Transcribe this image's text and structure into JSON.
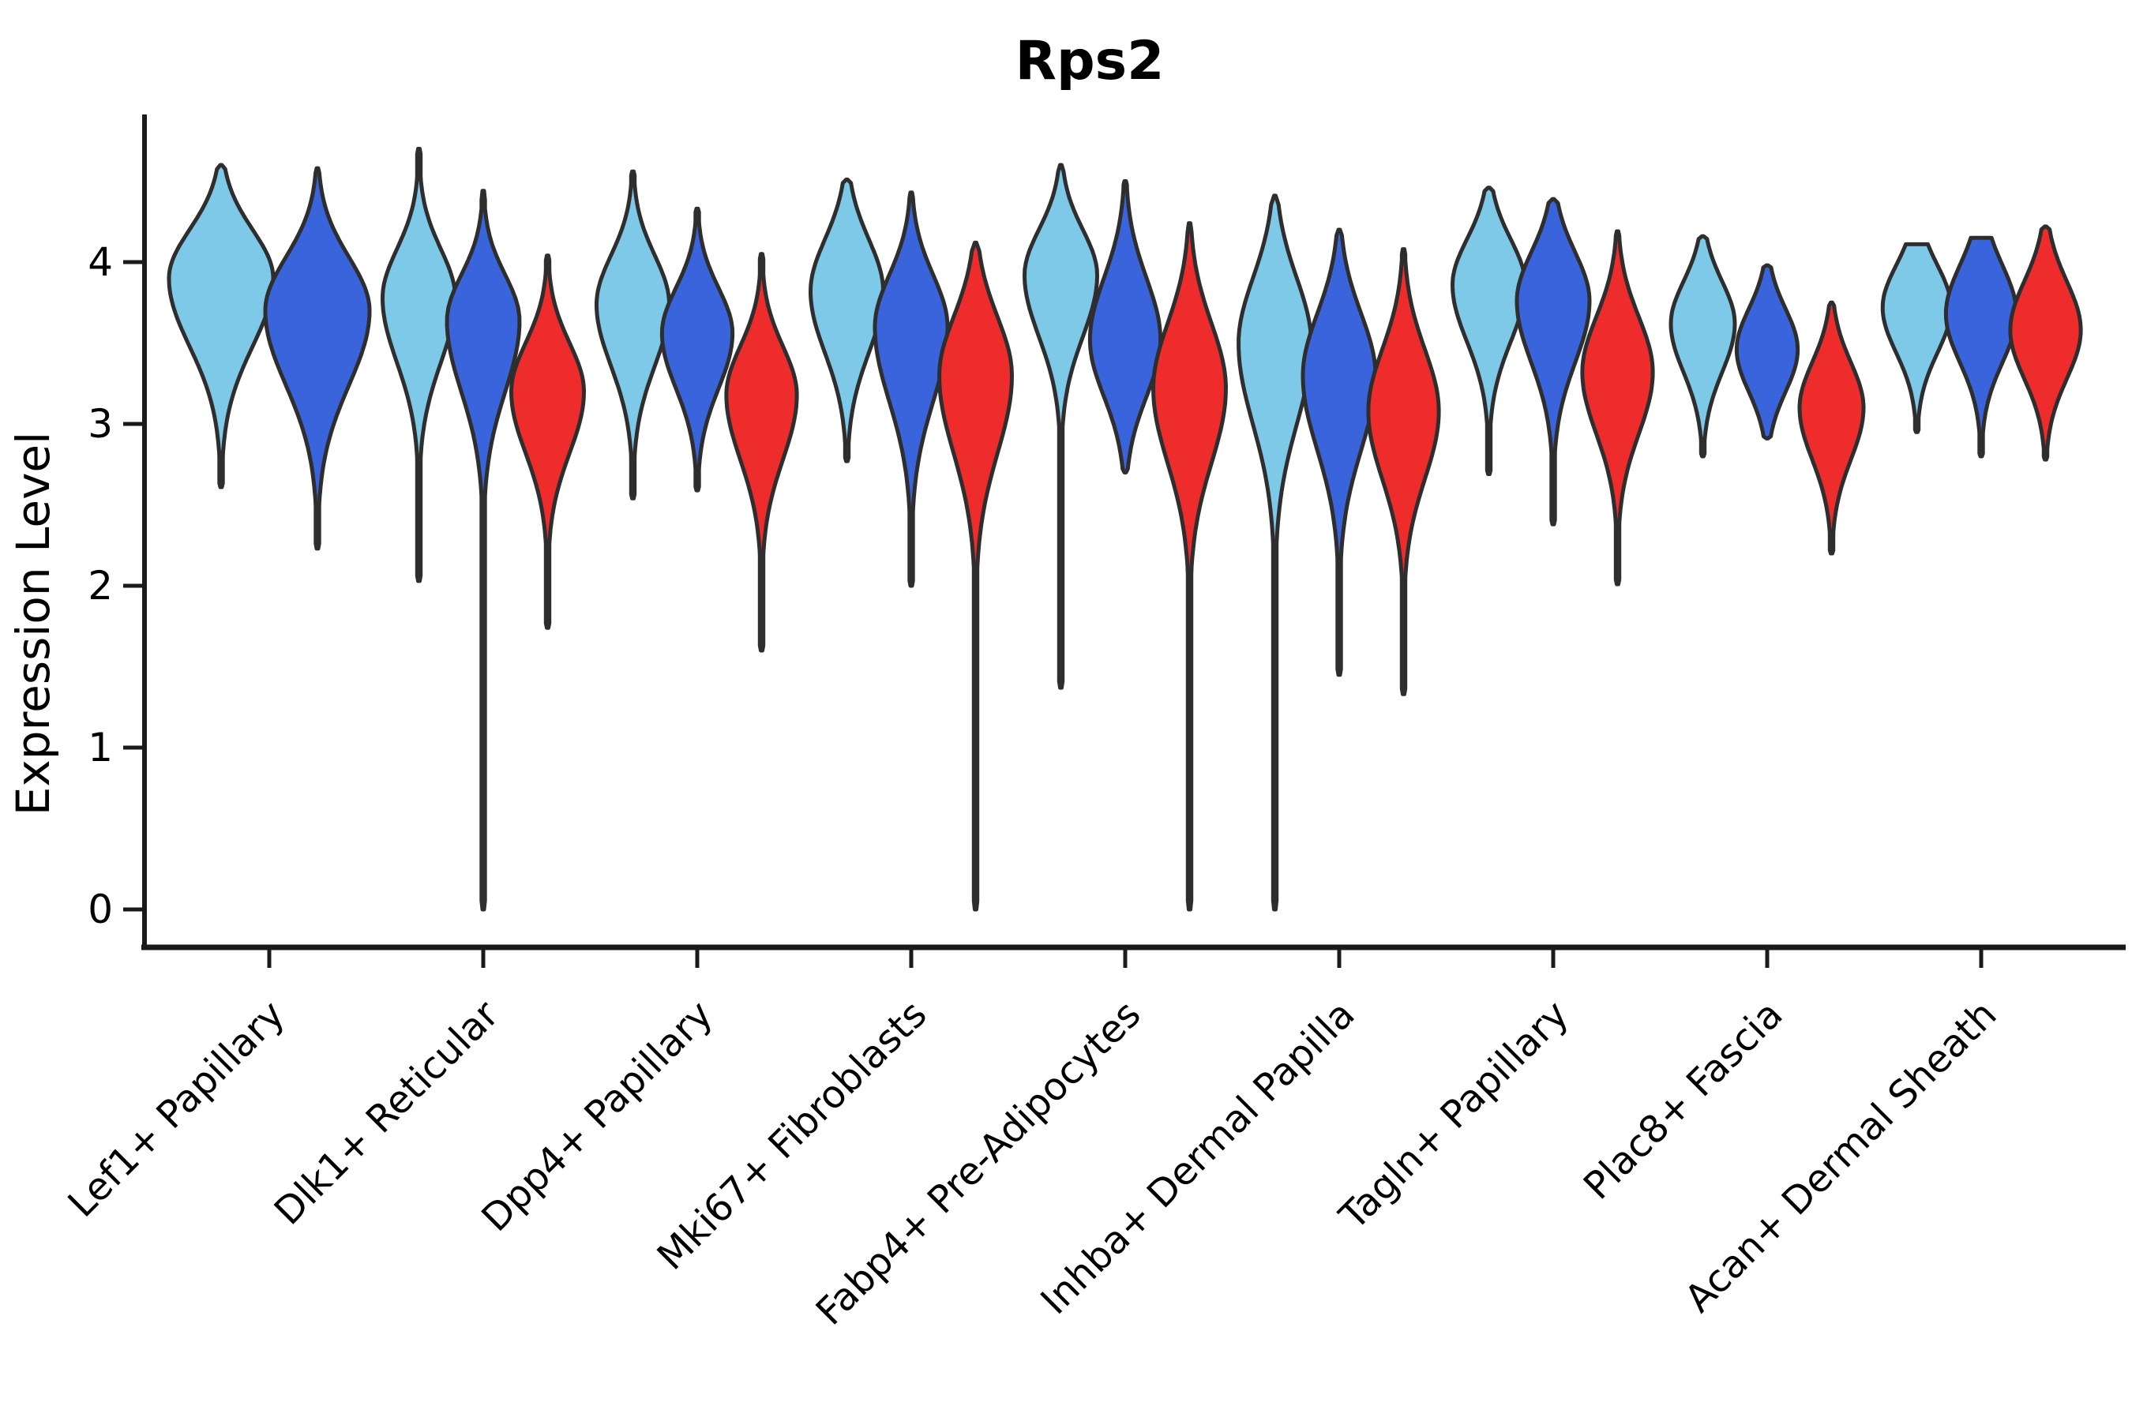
{
  "title": "Rps2",
  "y_axis": {
    "label": "Expression Level",
    "tick_labels": [
      "0",
      "1",
      "2",
      "3",
      "4"
    ]
  },
  "colors": {
    "light_blue": "#7EC8E8",
    "dark_blue": "#3A64DC",
    "red": "#EE2C2C",
    "outline": "#2E2E2E",
    "axis": "#1A1A1A"
  },
  "chart_data": {
    "type": "violin",
    "title": "Rps2",
    "xlabel": "",
    "ylabel": "Expression Level",
    "ylim": [
      0,
      4.9
    ],
    "yticks": [
      0,
      1,
      2,
      3,
      4
    ],
    "grid": false,
    "legend_position": "none",
    "splits": [
      "light_blue",
      "dark_blue",
      "red"
    ],
    "categories": [
      "Lef1+ Papillary",
      "Dlk1+ Reticular",
      "Dpp4+ Papillary",
      "Mki67+ Fibroblasts",
      "Fabp4+ Pre-Adipocytes",
      "Inhba+ Dermal Papilla",
      "Tagln+ Papillary",
      "Plac8+ Fascia",
      "Acan+ Dermal Sheath"
    ],
    "violins": [
      {
        "category": "Lef1+ Papillary",
        "split": "light_blue",
        "min": 2.61,
        "peak": 3.9,
        "max": 4.6,
        "spread_up": 0.3,
        "spread_down": 0.42,
        "rel_width": 1.0,
        "flat_top": false
      },
      {
        "category": "Lef1+ Papillary",
        "split": "dark_blue",
        "min": 2.23,
        "peak": 3.7,
        "max": 4.58,
        "spread_up": 0.33,
        "spread_down": 0.46,
        "rel_width": 1.0,
        "flat_top": false
      },
      {
        "category": "Dlk1+ Reticular",
        "split": "light_blue",
        "min": 2.03,
        "peak": 3.78,
        "max": 4.7,
        "spread_up": 0.3,
        "spread_down": 0.4,
        "rel_width": 1.0,
        "flat_top": false
      },
      {
        "category": "Dlk1+ Reticular",
        "split": "dark_blue",
        "min": 0.0,
        "peak": 3.64,
        "max": 4.44,
        "spread_up": 0.28,
        "spread_down": 0.44,
        "rel_width": 1.0,
        "flat_top": false
      },
      {
        "category": "Dlk1+ Reticular",
        "split": "red",
        "min": 1.74,
        "peak": 3.2,
        "max": 4.04,
        "spread_up": 0.3,
        "spread_down": 0.38,
        "rel_width": 1.0,
        "flat_top": false
      },
      {
        "category": "Dpp4+ Papillary",
        "split": "light_blue",
        "min": 2.54,
        "peak": 3.74,
        "max": 4.56,
        "spread_up": 0.3,
        "spread_down": 0.38,
        "rel_width": 1.0,
        "flat_top": false
      },
      {
        "category": "Dpp4+ Papillary",
        "split": "dark_blue",
        "min": 2.59,
        "peak": 3.56,
        "max": 4.33,
        "spread_up": 0.28,
        "spread_down": 0.34,
        "rel_width": 0.97,
        "flat_top": false
      },
      {
        "category": "Dpp4+ Papillary",
        "split": "red",
        "min": 1.6,
        "peak": 3.18,
        "max": 4.05,
        "spread_up": 0.3,
        "spread_down": 0.4,
        "rel_width": 0.97,
        "flat_top": false
      },
      {
        "category": "Mki67+ Fibroblasts",
        "split": "light_blue",
        "min": 2.77,
        "peak": 3.82,
        "max": 4.51,
        "spread_up": 0.32,
        "spread_down": 0.38,
        "rel_width": 1.0,
        "flat_top": false
      },
      {
        "category": "Mki67+ Fibroblasts",
        "split": "dark_blue",
        "min": 2.0,
        "peak": 3.6,
        "max": 4.43,
        "spread_up": 0.32,
        "spread_down": 0.46,
        "rel_width": 1.0,
        "flat_top": false
      },
      {
        "category": "Mki67+ Fibroblasts",
        "split": "red",
        "min": 0.0,
        "peak": 3.3,
        "max": 4.12,
        "spread_up": 0.36,
        "spread_down": 0.48,
        "rel_width": 1.0,
        "flat_top": false
      },
      {
        "category": "Fabp4+ Pre-Adipocytes",
        "split": "light_blue",
        "min": 1.37,
        "peak": 3.92,
        "max": 4.6,
        "spread_up": 0.28,
        "spread_down": 0.38,
        "rel_width": 1.0,
        "flat_top": false
      },
      {
        "category": "Fabp4+ Pre-Adipocytes",
        "split": "dark_blue",
        "min": 2.7,
        "peak": 3.52,
        "max": 4.5,
        "spread_up": 0.38,
        "spread_down": 0.35,
        "rel_width": 0.97,
        "flat_top": false
      },
      {
        "category": "Fabp4+ Pre-Adipocytes",
        "split": "red",
        "min": 0.0,
        "peak": 3.22,
        "max": 4.24,
        "spread_up": 0.4,
        "spread_down": 0.46,
        "rel_width": 1.0,
        "flat_top": false
      },
      {
        "category": "Inhba+ Dermal Papilla",
        "split": "light_blue",
        "min": 0.0,
        "peak": 3.5,
        "max": 4.41,
        "spread_up": 0.4,
        "spread_down": 0.5,
        "rel_width": 1.0,
        "flat_top": false
      },
      {
        "category": "Inhba+ Dermal Papilla",
        "split": "dark_blue",
        "min": 1.45,
        "peak": 3.3,
        "max": 4.2,
        "spread_up": 0.38,
        "spread_down": 0.46,
        "rel_width": 1.0,
        "flat_top": false
      },
      {
        "category": "Inhba+ Dermal Papilla",
        "split": "red",
        "min": 1.33,
        "peak": 3.08,
        "max": 4.08,
        "spread_up": 0.38,
        "spread_down": 0.42,
        "rel_width": 0.97,
        "flat_top": false
      },
      {
        "category": "Tagln+ Papillary",
        "split": "light_blue",
        "min": 2.69,
        "peak": 3.86,
        "max": 4.46,
        "spread_up": 0.28,
        "spread_down": 0.35,
        "rel_width": 1.0,
        "flat_top": false
      },
      {
        "category": "Tagln+ Papillary",
        "split": "dark_blue",
        "min": 2.38,
        "peak": 3.76,
        "max": 4.39,
        "spread_up": 0.3,
        "spread_down": 0.38,
        "rel_width": 1.0,
        "flat_top": false
      },
      {
        "category": "Tagln+ Papillary",
        "split": "red",
        "min": 2.01,
        "peak": 3.32,
        "max": 4.19,
        "spread_up": 0.34,
        "spread_down": 0.38,
        "rel_width": 0.97,
        "flat_top": false
      },
      {
        "category": "Plac8+ Fascia",
        "split": "light_blue",
        "min": 2.8,
        "peak": 3.62,
        "max": 4.16,
        "spread_up": 0.26,
        "spread_down": 0.3,
        "rel_width": 0.88,
        "flat_top": false
      },
      {
        "category": "Plac8+ Fascia",
        "split": "dark_blue",
        "min": 2.91,
        "peak": 3.46,
        "max": 3.98,
        "spread_up": 0.25,
        "spread_down": 0.26,
        "rel_width": 0.84,
        "flat_top": false
      },
      {
        "category": "Plac8+ Fascia",
        "split": "red",
        "min": 2.2,
        "peak": 3.1,
        "max": 3.75,
        "spread_up": 0.28,
        "spread_down": 0.32,
        "rel_width": 0.88,
        "flat_top": false
      },
      {
        "category": "Acan+ Dermal Sheath",
        "split": "light_blue",
        "min": 2.95,
        "peak": 3.72,
        "max": 4.11,
        "spread_up": 0.26,
        "spread_down": 0.28,
        "rel_width": 0.94,
        "flat_top": true
      },
      {
        "category": "Acan+ Dermal Sheath",
        "split": "dark_blue",
        "min": 2.8,
        "peak": 3.68,
        "max": 4.15,
        "spread_up": 0.3,
        "spread_down": 0.3,
        "rel_width": 0.97,
        "flat_top": true
      },
      {
        "category": "Acan+ Dermal Sheath",
        "split": "red",
        "min": 2.78,
        "peak": 3.58,
        "max": 4.22,
        "spread_up": 0.3,
        "spread_down": 0.3,
        "rel_width": 0.97,
        "flat_top": false
      }
    ]
  }
}
